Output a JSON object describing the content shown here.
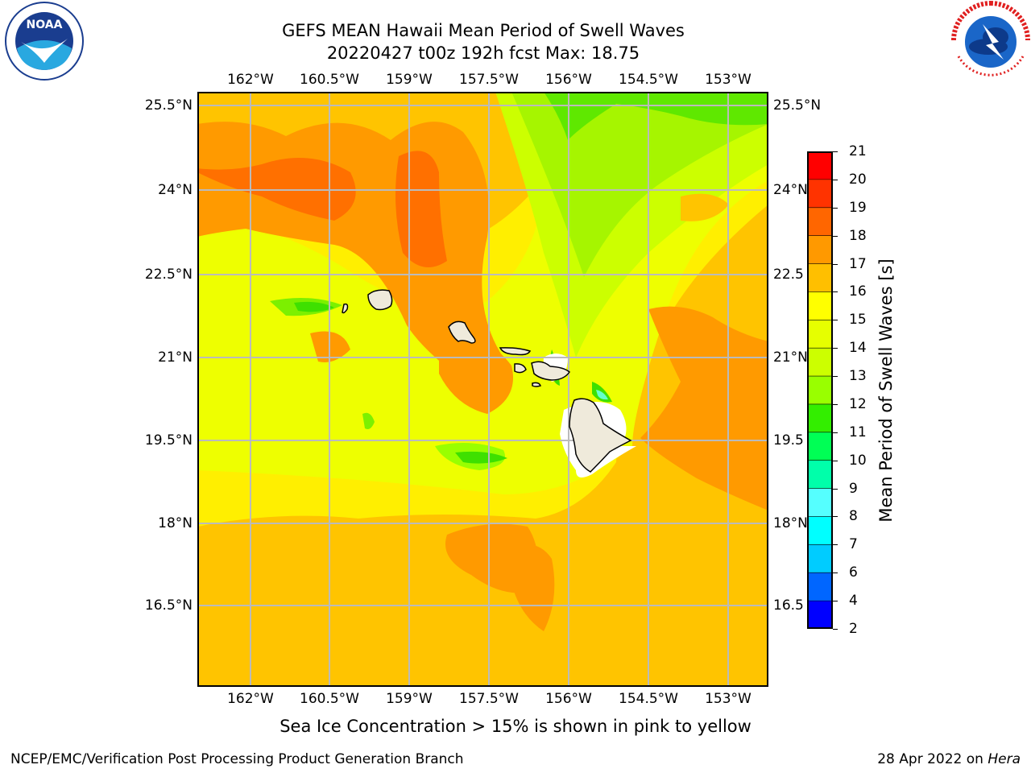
{
  "title_line1": "GEFS MEAN Hawaii Mean Period of Swell Waves",
  "title_line2": "20220427 t00z 192h fcst   Max: 18.75",
  "lon_labels": [
    "162°W",
    "160.5°W",
    "159°W",
    "157.5°W",
    "156°W",
    "154.5°W",
    "153°W"
  ],
  "lat_labels": [
    "25.5°N",
    "24°N",
    "22.5°N",
    "21°N",
    "19.5°N",
    "18°N",
    "16.5°N"
  ],
  "lat_labels_right": [
    "25.5°N",
    "24°N",
    "22.5",
    "21°N",
    "19.5",
    "18°N",
    "16.5"
  ],
  "colorbar": {
    "label": "Mean Period of Swell Waves [s]",
    "ticks": [
      "21",
      "20",
      "19",
      "18",
      "17",
      "16",
      "15",
      "14",
      "13",
      "12",
      "11",
      "10",
      "9",
      "8",
      "7",
      "6",
      "4",
      "2"
    ],
    "colors": [
      "#ff0000",
      "#ff3300",
      "#ff6600",
      "#ff9900",
      "#ffbf00",
      "#ffff00",
      "#e6ff00",
      "#ccff00",
      "#99ff00",
      "#33ee00",
      "#00ff55",
      "#00ffaa",
      "#55ffff",
      "#00ffff",
      "#00ccff",
      "#0066ff",
      "#0000ff"
    ]
  },
  "subtitle": "Sea Ice Concentration > 15% is shown in pink to yellow",
  "footer_left": "NCEP/EMC/Verification Post Processing Product Generation Branch",
  "footer_date": "28 Apr 2022 on",
  "footer_host": "Hera",
  "noaa_logo_text": "NOAA",
  "nws_logo_text": "NATIONAL WEATHER SERVICE"
}
